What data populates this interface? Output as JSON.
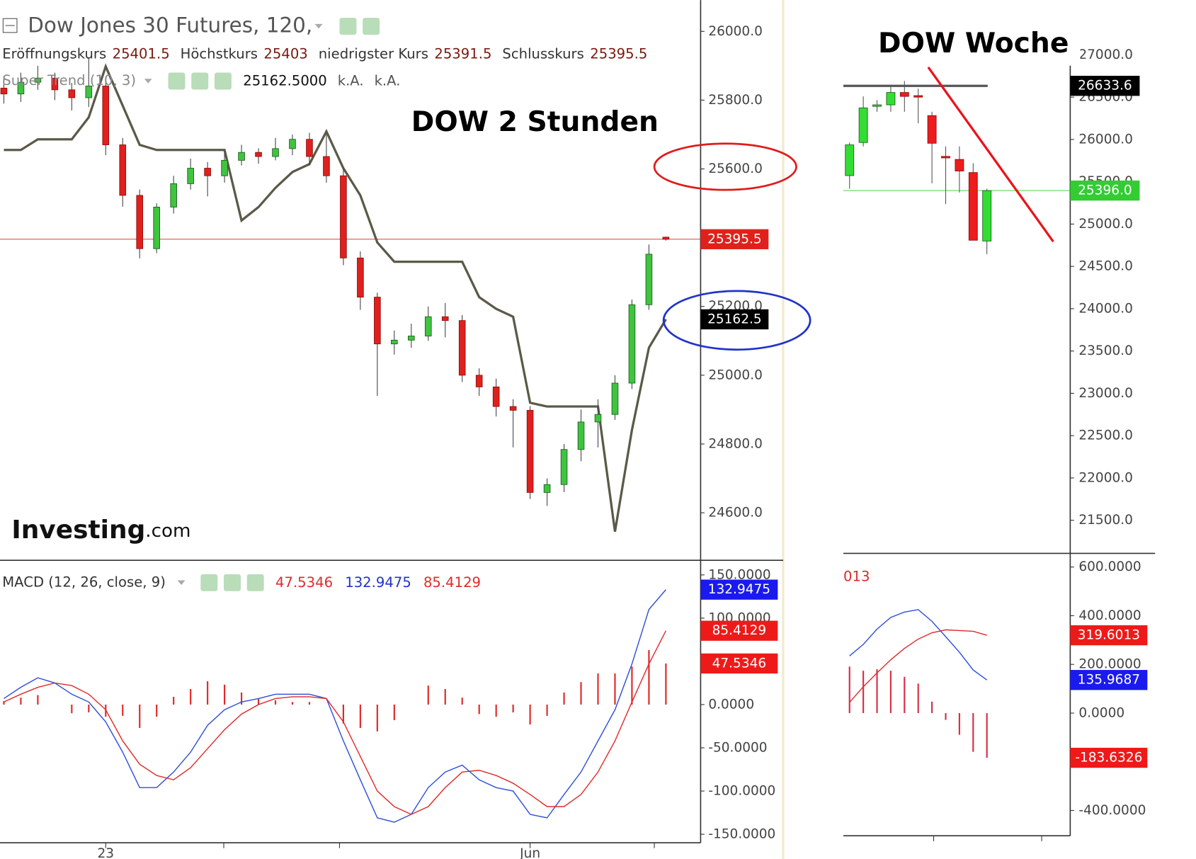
{
  "chart_data": [
    {
      "type": "candlestick",
      "title": "Dow Jones 30 Futures, 120,",
      "annotation": "DOW 2 Stunden",
      "watermark": [
        "Investing",
        ".com"
      ],
      "ohlc_labels": [
        "Eröffnungskurs",
        "Höchstkurs",
        "niedrigster Kurs",
        "Schlusskurs"
      ],
      "categories": [
        null,
        null,
        null,
        null,
        null,
        null,
        "23",
        null,
        null,
        null,
        null,
        null,
        null,
        null,
        null,
        null,
        null,
        null,
        null,
        null,
        null,
        null,
        null,
        null,
        null,
        null,
        null,
        null,
        null,
        null,
        null,
        "Jun",
        null,
        null,
        null,
        null,
        null,
        null,
        null,
        null
      ],
      "open": [
        25835,
        25818,
        25852,
        25864,
        25830,
        25807,
        25841,
        25670,
        25523,
        25368,
        25489,
        25557,
        25602,
        25580,
        25625,
        25648,
        25636,
        25659,
        25686,
        25636,
        25580,
        25341,
        25227,
        25091,
        25102,
        25114,
        25170,
        25159,
        25000,
        24966,
        24909,
        24898,
        24659,
        24682,
        24784,
        24864,
        24886,
        24977,
        25205,
        25401.5
      ],
      "high": [
        25870,
        25880,
        25900,
        25880,
        25850,
        25925,
        25860,
        25690,
        25540,
        25500,
        25580,
        25630,
        25620,
        25650,
        25670,
        25660,
        25690,
        25700,
        25705,
        25700,
        25600,
        25360,
        25240,
        25130,
        25150,
        25200,
        25210,
        25175,
        25020,
        24990,
        24930,
        24910,
        24700,
        24800,
        24900,
        24930,
        25000,
        25220,
        25380,
        25403.0
      ],
      "low": [
        25790,
        25795,
        25830,
        25800,
        25770,
        25780,
        25640,
        25490,
        25340,
        25355,
        25470,
        25540,
        25520,
        25560,
        25610,
        25615,
        25625,
        25640,
        25610,
        25560,
        25320,
        25190,
        24940,
        25060,
        25080,
        25100,
        25110,
        24980,
        24940,
        24880,
        24790,
        24640,
        24620,
        24660,
        24750,
        24790,
        24870,
        24960,
        25190,
        25391.5
      ],
      "close": [
        25818,
        25852,
        25864,
        25830,
        25807,
        25841,
        25670,
        25523,
        25368,
        25489,
        25557,
        25602,
        25580,
        25625,
        25648,
        25636,
        25659,
        25686,
        25636,
        25580,
        25341,
        25227,
        25091,
        25102,
        25114,
        25170,
        25159,
        25000,
        24966,
        24909,
        24898,
        24659,
        24682,
        24784,
        24864,
        24886,
        24977,
        25205,
        25352,
        25395.5
      ],
      "up_color": "#3fc43f",
      "down_color": "#e0201c",
      "wick_color": "#444",
      "price_line_color": "#e0201c",
      "overlay": {
        "name": "Super Trend (10, 3)",
        "color": "#5a5a48",
        "readout": [
          "25162.5000",
          "k.A.",
          "k.A."
        ],
        "values": [
          25655,
          25655,
          25686,
          25686,
          25686,
          25750,
          25898,
          25784,
          25670,
          25655,
          25655,
          25655,
          25655,
          25655,
          25450,
          25489,
          25545,
          25591,
          25614,
          25709,
          25602,
          25523,
          25386,
          25330,
          25330,
          25330,
          25330,
          25330,
          25227,
          25193,
          25170,
          24920,
          24909,
          24909,
          24909,
          24909,
          24545,
          24841,
          25080,
          25162.5
        ]
      },
      "ylim": [
        24464,
        26091
      ],
      "yticks": [
        {
          "value": 24600,
          "label": "24600.0"
        },
        {
          "value": 24800,
          "label": "24800.0"
        },
        {
          "value": 25000,
          "label": "25000.0"
        },
        {
          "value": 25200,
          "label": "25200.0"
        },
        {
          "value": 25400,
          "label": "25400.0"
        },
        {
          "value": 25600,
          "label": "25600.0"
        },
        {
          "value": 25800,
          "label": "25800.0"
        },
        {
          "value": 26000,
          "label": "26000.0"
        }
      ]
    },
    {
      "type": "macd",
      "title": "MACD (12, 26, close, 9)",
      "macd": {
        "color": "#2e4fd8",
        "values": [
          7,
          20,
          31,
          25,
          12,
          3,
          -20,
          -55,
          -96,
          -96,
          -78,
          -55,
          -24,
          -6,
          3,
          7,
          12,
          12,
          12,
          7,
          -42,
          -87,
          -131,
          -136,
          -127,
          -96,
          -78,
          -70,
          -87,
          -96,
          -100,
          -127,
          -131,
          -104,
          -78,
          -42,
          -6,
          47,
          110,
          132.9475
        ]
      },
      "signal": {
        "color": "#e02a2a",
        "values": [
          3,
          12,
          20,
          25,
          22,
          12,
          -6,
          -42,
          -69,
          -82,
          -87,
          -73,
          -51,
          -29,
          -11,
          0,
          7,
          9,
          9,
          7,
          -20,
          -60,
          -100,
          -118,
          -127,
          -118,
          -96,
          -78,
          -76,
          -82,
          -91,
          -104,
          -118,
          -118,
          -104,
          -78,
          -42,
          3,
          47,
          85.4129
        ]
      },
      "histogram": {
        "color": "#e02a2a",
        "values": [
          4,
          8,
          11,
          0,
          -10,
          -9,
          -14,
          -13,
          -27,
          -14,
          9,
          18,
          27,
          23,
          14,
          7,
          5,
          3,
          3,
          0,
          -22,
          -27,
          -31,
          -18,
          0,
          22,
          18,
          8,
          -11,
          -14,
          -9,
          -23,
          -13,
          14,
          26,
          36,
          36,
          44,
          63,
          47.5346
        ]
      },
      "ylim": [
        -158,
        166
      ],
      "yticks": [
        {
          "value": -150,
          "label": "-150.0000"
        },
        {
          "value": -100,
          "label": "-100.0000"
        },
        {
          "value": -50,
          "label": "-50.0000"
        },
        {
          "value": 0,
          "label": "0.0000"
        },
        {
          "value": 50,
          "label": "50.0000"
        },
        {
          "value": 100,
          "label": "100.0000"
        },
        {
          "value": 150,
          "label": "150.0000"
        }
      ]
    },
    {
      "type": "candlestick",
      "annotation": "DOW Woche",
      "categories": [
        null,
        null,
        null,
        null,
        null,
        null,
        null,
        null,
        null,
        null,
        null
      ],
      "open": [
        25573,
        25964,
        26391,
        26409,
        26555,
        26518,
        26282,
        25800,
        25764,
        25609,
        24800
      ],
      "high": [
        25964,
        26509,
        26464,
        26645,
        26691,
        26600,
        26327,
        25918,
        25918,
        25718,
        25418
      ],
      "low": [
        25418,
        25918,
        26327,
        26327,
        26327,
        26191,
        25482,
        25236,
        25373,
        24809,
        24645
      ],
      "close": [
        25936,
        26373,
        26409,
        26555,
        26509,
        26500,
        25955,
        25782,
        25627,
        24809,
        25396
      ],
      "last_label": "25396.0",
      "up_color": "#33dd33",
      "down_color": "#ee1c1c",
      "wick_color": "#555",
      "price_line_color": "#33cc33",
      "levels": [
        {
          "value": 26633.6,
          "label": "26633.6",
          "color": "#555555"
        }
      ],
      "ylim": [
        21100,
        27100
      ],
      "yticks": [
        {
          "value": 21500,
          "label": "21500.0"
        },
        {
          "value": 22000,
          "label": "22000.0"
        },
        {
          "value": 22500,
          "label": "22500.0"
        },
        {
          "value": 23000,
          "label": "23000.0"
        },
        {
          "value": 23500,
          "label": "23500.0"
        },
        {
          "value": 24000,
          "label": "24000.0"
        },
        {
          "value": 24500,
          "label": "24500.0"
        },
        {
          "value": 25000,
          "label": "25000.0"
        },
        {
          "value": 25500,
          "label": "25500.0"
        },
        {
          "value": 26000,
          "label": "26000.0"
        },
        {
          "value": 26500,
          "label": "26500.0"
        },
        {
          "value": 27000,
          "label": "27000.0"
        }
      ]
    },
    {
      "type": "macd",
      "legend_fragment": "013",
      "macd": {
        "color": "#2e4fd8",
        "values": [
          235,
          282,
          345,
          393,
          415,
          425,
          377,
          314,
          250,
          177,
          135.9687
        ]
      },
      "signal": {
        "color": "#e02a2a",
        "values": [
          44,
          108,
          165,
          219,
          266,
          304,
          330,
          342,
          339,
          336,
          319.6013
        ]
      },
      "histogram": {
        "color": "#d8304a",
        "values": [
          191,
          174,
          180,
          174,
          149,
          121,
          47,
          -28,
          -89,
          -159,
          -183.6326
        ]
      },
      "ylim": [
        -504,
        653
      ],
      "yticks": [
        {
          "value": -400,
          "label": "-400.0000"
        },
        {
          "value": 0,
          "label": "0.0000"
        },
        {
          "value": 200,
          "label": "200.0000"
        },
        {
          "value": 400,
          "label": "400.0000"
        },
        {
          "value": 600,
          "label": "600.0000"
        }
      ]
    }
  ]
}
